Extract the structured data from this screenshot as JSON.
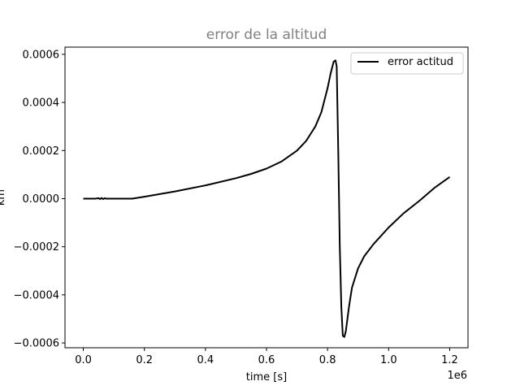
{
  "chart_data": {
    "type": "line",
    "title": "error de la altitud",
    "xlabel": "time [s]",
    "ylabel": "km",
    "x_offset_label": "1e6",
    "xlim": [
      -0.06,
      1.26
    ],
    "ylim": [
      -0.00062,
      0.00063
    ],
    "x_ticks": [
      0.0,
      0.2,
      0.4,
      0.6,
      0.8,
      1.0,
      1.2
    ],
    "x_tick_labels": [
      "0.0",
      "0.2",
      "0.4",
      "0.6",
      "0.8",
      "1.0",
      "1.2"
    ],
    "y_ticks": [
      -0.0006,
      -0.0004,
      -0.0002,
      0.0,
      0.0002,
      0.0004,
      0.0006
    ],
    "y_tick_labels": [
      "−0.0006",
      "−0.0004",
      "−0.0002",
      "0.0000",
      "0.0002",
      "0.0004",
      "0.0006"
    ],
    "grid": false,
    "legend_position": "top-right",
    "series": [
      {
        "name": "error actitud",
        "color": "#000000",
        "x": [
          0.0,
          0.04,
          0.05,
          0.055,
          0.06,
          0.065,
          0.07,
          0.075,
          0.08,
          0.16,
          0.2,
          0.3,
          0.4,
          0.5,
          0.55,
          0.6,
          0.65,
          0.7,
          0.73,
          0.76,
          0.78,
          0.8,
          0.81,
          0.82,
          0.826,
          0.83,
          0.835,
          0.84,
          0.845,
          0.85,
          0.855,
          0.86,
          0.87,
          0.88,
          0.9,
          0.92,
          0.95,
          1.0,
          1.05,
          1.1,
          1.15,
          1.2
        ],
        "y": [
          0.0,
          0.0,
          2e-06,
          -2e-06,
          3e-06,
          -2e-06,
          2e-06,
          0.0,
          0.0,
          0.0,
          8e-06,
          3e-05,
          5.5e-05,
          8.5e-05,
          0.000103,
          0.000125,
          0.000155,
          0.0002,
          0.00024,
          0.0003,
          0.00036,
          0.00046,
          0.00052,
          0.00057,
          0.000575,
          0.00055,
          0.0002,
          -0.0002,
          -0.00045,
          -0.00057,
          -0.000575,
          -0.00055,
          -0.00045,
          -0.00037,
          -0.00029,
          -0.00024,
          -0.00019,
          -0.00012,
          -6e-05,
          -1e-05,
          4.5e-05,
          9e-05
        ]
      }
    ]
  }
}
